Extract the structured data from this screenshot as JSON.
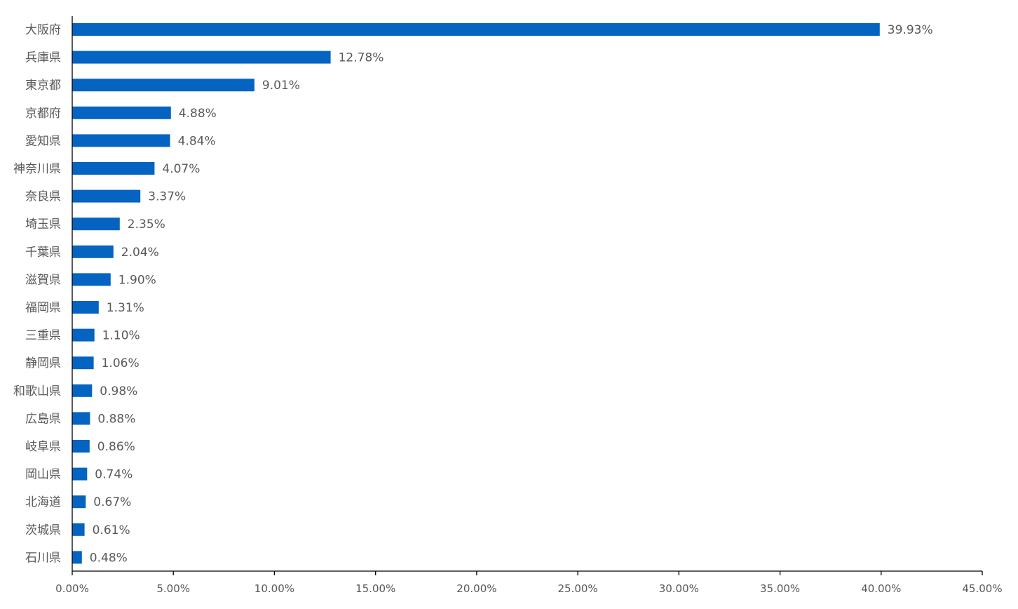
{
  "chart_data": {
    "type": "bar",
    "orientation": "horizontal",
    "title": "",
    "xlabel": "",
    "ylabel": "",
    "xlim": [
      0,
      45
    ],
    "grid": false,
    "legend": "none",
    "bar_color": "#0563C1",
    "axis_color": "#000000",
    "text_color": "#595959",
    "categories": [
      "大阪府",
      "兵庫県",
      "東京都",
      "京都府",
      "愛知県",
      "神奈川県",
      "奈良県",
      "埼玉県",
      "千葉県",
      "滋賀県",
      "福岡県",
      "三重県",
      "静岡県",
      "和歌山県",
      "広島県",
      "岐阜県",
      "岡山県",
      "北海道",
      "茨城県",
      "石川県"
    ],
    "values": [
      39.93,
      12.78,
      9.01,
      4.88,
      4.84,
      4.07,
      3.37,
      2.35,
      2.04,
      1.9,
      1.31,
      1.1,
      1.06,
      0.98,
      0.88,
      0.86,
      0.74,
      0.67,
      0.61,
      0.48
    ],
    "value_labels": [
      "39.93%",
      "12.78%",
      "9.01%",
      "4.88%",
      "4.84%",
      "4.07%",
      "3.37%",
      "2.35%",
      "2.04%",
      "1.90%",
      "1.31%",
      "1.10%",
      "1.06%",
      "0.98%",
      "0.88%",
      "0.86%",
      "0.74%",
      "0.67%",
      "0.61%",
      "0.48%"
    ],
    "x_ticks": [
      0,
      5,
      10,
      15,
      20,
      25,
      30,
      35,
      40,
      45
    ],
    "x_tick_labels": [
      "0.00%",
      "5.00%",
      "10.00%",
      "15.00%",
      "20.00%",
      "25.00%",
      "30.00%",
      "35.00%",
      "40.00%",
      "45.00%"
    ]
  }
}
